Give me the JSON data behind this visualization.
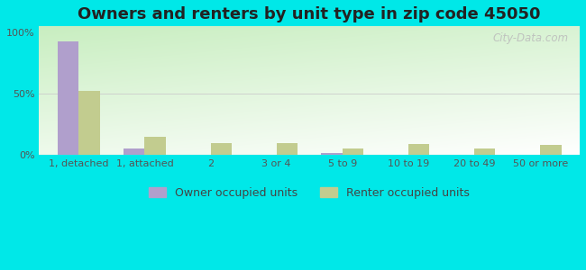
{
  "title": "Owners and renters by unit type in zip code 45050",
  "categories": [
    "1, detached",
    "1, attached",
    "2",
    "3 or 4",
    "5 to 9",
    "10 to 19",
    "20 to 49",
    "50 or more"
  ],
  "owner_values": [
    93,
    5,
    0,
    0,
    2,
    0,
    0,
    0
  ],
  "renter_values": [
    52,
    15,
    10,
    10,
    5,
    9,
    5,
    8
  ],
  "owner_color": "#b09fcc",
  "renter_color": "#c2cc8f",
  "background_outer": "#00e8e8",
  "background_plot_topleft": "#c8eec8",
  "background_plot_bottom": "#e8f8e8",
  "background_plot_right": "#ffffff",
  "ylabel_ticks": [
    "0%",
    "50%",
    "100%"
  ],
  "ytick_values": [
    0,
    50,
    100
  ],
  "bar_width": 0.32,
  "legend_owner": "Owner occupied units",
  "legend_renter": "Renter occupied units",
  "watermark": "City-Data.com",
  "title_fontsize": 13,
  "tick_fontsize": 8,
  "legend_fontsize": 9,
  "ylim_max": 105
}
